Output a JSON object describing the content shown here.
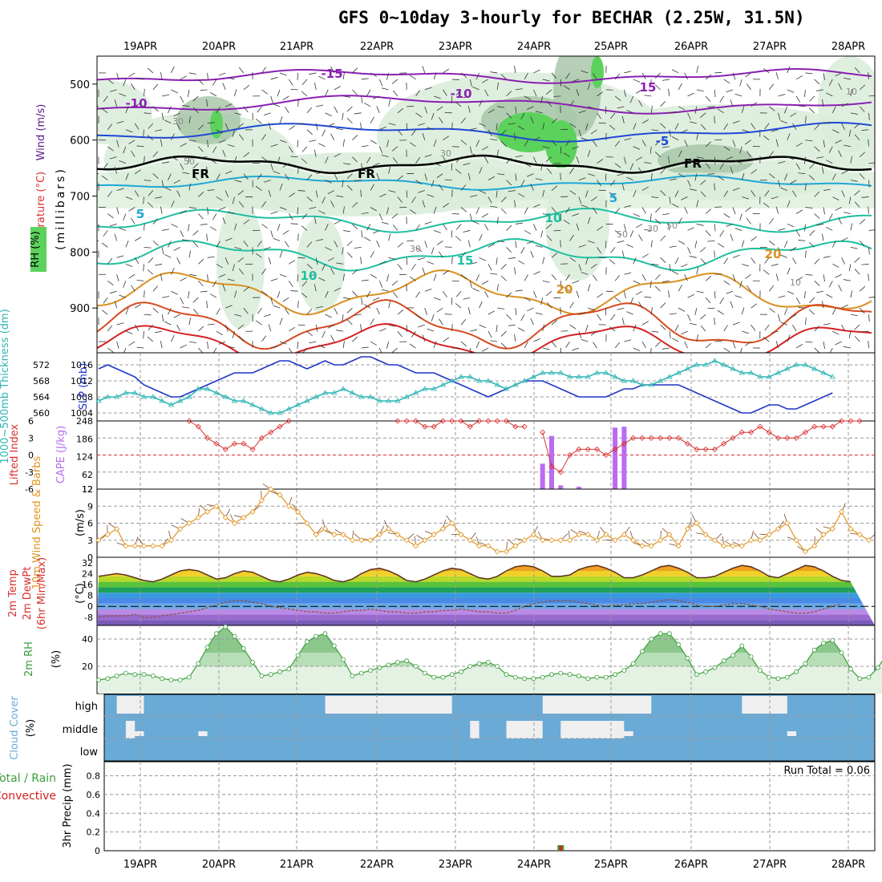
{
  "title": "GFS 0~10day 3-hourly for BECHAR (2.25W, 31.5N)",
  "colors": {
    "rh_light": "#d9ecd9",
    "rh_mid": "#a9c7a9",
    "rh_dark": "#7fa07f",
    "rh_green": "#5cd25c",
    "temp_neg": "#8a1fb3",
    "temp_neg_blue": "#1f49d6",
    "temp_pos_cyan": "#1fa7d6",
    "temp_pos_teal": "#1fbfa0",
    "temp_warm": "#d98f1f",
    "temp_hot": "#d64a1f",
    "temp_red": "#d62020",
    "slp": "#1f35c8",
    "thickness": "#2fb5b5",
    "lifted": "#d93030",
    "cape": "#b86cf0",
    "wind10": "#e0941f",
    "rh2m": "#3a9e3a",
    "cloud": "#6aaad6",
    "cloud_gap": "#efefef",
    "rain": "#3a9e3a",
    "conv": "#d62020"
  },
  "dates": [
    "19APR",
    "20APR",
    "21APR",
    "22APR",
    "23APR",
    "24APR",
    "25APR",
    "26APR",
    "27APR",
    "28APR"
  ],
  "chart_data": [
    {
      "type": "heatmap",
      "panel": "upper-air",
      "labels": {
        "wind": "Wind (m/s)",
        "temp": "Temperature (°C)",
        "rh": "RH (%)",
        "unit": "(millibars)"
      },
      "y_ticks": [
        "500",
        "600",
        "700",
        "800",
        "900"
      ],
      "ylim": [
        980,
        450
      ],
      "temperature_contour_labels": [
        "-15",
        "-10",
        "-10",
        "15",
        "-5",
        "5",
        "5",
        "10",
        "15",
        "20",
        "10",
        "20",
        "FR",
        "FR",
        "FR"
      ],
      "rh_contour_labels": [
        "30",
        "30",
        "50",
        "30",
        "50",
        "50",
        "30",
        "10",
        "10"
      ]
    },
    {
      "type": "line",
      "panel": "thickness-slp",
      "labels": {
        "thickness": "1000~500mb Thickness (dm)",
        "slp": "SLP (mb)"
      },
      "left_ticks": [
        "560",
        "564",
        "568",
        "572"
      ],
      "right_ticks": [
        "1004",
        "1008",
        "1012",
        "1016"
      ],
      "left_lim": [
        558,
        575
      ],
      "right_lim": [
        1002,
        1019
      ],
      "series": [
        {
          "name": "SLP",
          "axis": "right",
          "values": [
            1015,
            1016,
            1015,
            1014,
            1013,
            1011,
            1010,
            1009,
            1008,
            1008,
            1009,
            1010,
            1011,
            1012,
            1013,
            1014,
            1014,
            1014,
            1015,
            1016,
            1017,
            1017,
            1016,
            1015,
            1016,
            1017,
            1016,
            1016,
            1017,
            1018,
            1018,
            1017,
            1016,
            1016,
            1015,
            1014,
            1014,
            1014,
            1013,
            1012,
            1011,
            1010,
            1009,
            1008,
            1009,
            1010,
            1011,
            1012,
            1012,
            1012,
            1011,
            1010,
            1009,
            1008,
            1008,
            1008,
            1008,
            1009,
            1010,
            1010,
            1011,
            1011,
            1011,
            1011,
            1011,
            1010,
            1009,
            1008,
            1007,
            1006,
            1005,
            1004,
            1004,
            1005,
            1006,
            1006,
            1005,
            1005,
            1006,
            1007,
            1008,
            1009
          ]
        },
        {
          "name": "Thickness",
          "axis": "left",
          "values": [
            563,
            564,
            564,
            565,
            565,
            564,
            564,
            563,
            562,
            563,
            564,
            566,
            566,
            565,
            564,
            563,
            563,
            562,
            561,
            560,
            560,
            561,
            562,
            563,
            564,
            565,
            565,
            566,
            565,
            564,
            564,
            563,
            563,
            563,
            564,
            565,
            566,
            566,
            567,
            568,
            569,
            569,
            568,
            568,
            567,
            566,
            567,
            568,
            569,
            570,
            570,
            570,
            569,
            569,
            569,
            570,
            570,
            569,
            568,
            568,
            567,
            567,
            568,
            569,
            570,
            571,
            572,
            572,
            573,
            572,
            571,
            570,
            570,
            569,
            569,
            570,
            571,
            572,
            572,
            571,
            570,
            569
          ]
        }
      ]
    },
    {
      "type": "bar",
      "panel": "lifted-cape",
      "labels": {
        "lifted": "Lifted Index",
        "cape": "CAPE (J/kg)"
      },
      "left_ticks": [
        "6",
        "3",
        "0",
        "-3",
        "-6"
      ],
      "right_ticks": [
        "12",
        "62",
        "124",
        "186",
        "248"
      ],
      "left_lim": [
        6,
        -6
      ],
      "right_lim": [
        12,
        248
      ],
      "cape_bars": [
        {
          "x": 49,
          "v": 100
        },
        {
          "x": 50,
          "v": 196
        },
        {
          "x": 51,
          "v": 25
        },
        {
          "x": 53,
          "v": 20
        },
        {
          "x": 57,
          "v": 225
        },
        {
          "x": 58,
          "v": 228
        }
      ],
      "lifted_index": [
        null,
        null,
        null,
        null,
        null,
        null,
        null,
        null,
        null,
        null,
        6,
        5,
        3,
        2,
        1,
        2,
        2,
        1,
        3,
        4,
        5,
        6,
        null,
        null,
        null,
        null,
        null,
        null,
        null,
        null,
        null,
        null,
        null,
        6,
        6,
        6,
        5,
        5,
        6,
        6,
        6,
        5,
        6,
        6,
        6,
        6,
        5,
        5,
        null,
        4,
        -2,
        -3,
        0,
        1,
        1,
        1,
        0,
        1,
        2,
        3,
        3,
        3,
        3,
        3,
        3,
        2,
        1,
        1,
        1,
        2,
        3,
        4,
        4,
        5,
        4,
        3,
        3,
        3,
        4,
        5,
        5,
        5,
        6,
        6,
        6
      ]
    },
    {
      "type": "line",
      "panel": "wind10m",
      "labels": {
        "main": "10m Wind Speed & Barbs",
        "unit": "(m/s)"
      },
      "y_ticks": [
        "0",
        "3",
        "6",
        "9",
        "12"
      ],
      "ylim": [
        0,
        12
      ],
      "values": [
        3,
        4,
        5,
        2,
        2,
        2,
        2,
        2,
        3,
        5,
        6,
        7,
        8,
        9,
        7,
        6,
        7,
        8,
        10,
        12,
        11,
        9,
        8,
        6,
        4,
        5,
        4,
        4,
        3,
        3,
        3,
        4,
        5,
        4,
        3,
        2,
        3,
        4,
        5,
        6,
        4,
        3,
        2,
        2,
        1,
        1,
        2,
        3,
        4,
        3,
        3,
        3,
        3,
        4,
        4,
        3,
        4,
        3,
        4,
        3,
        2,
        2,
        3,
        4,
        2,
        5,
        6,
        4,
        3,
        2,
        2,
        2,
        3,
        3,
        4,
        5,
        6,
        3,
        1,
        2,
        4,
        5,
        8,
        5,
        4,
        3
      ]
    },
    {
      "type": "area",
      "panel": "temp2m",
      "labels": {
        "main": "2m Temp",
        "dewpt": "2m DewPt",
        "minmax": "(6hr Min/Max)",
        "unit": "(°C)"
      },
      "y_ticks": [
        "-8",
        "0",
        "8",
        "16",
        "24",
        "32"
      ],
      "ylim": [
        -14,
        36
      ],
      "temperature": [
        22,
        23,
        24,
        23,
        21,
        19,
        18,
        20,
        23,
        26,
        27,
        26,
        23,
        20,
        21,
        24,
        26,
        25,
        22,
        19,
        18,
        20,
        23,
        25,
        24,
        22,
        19,
        18,
        20,
        24,
        27,
        28,
        26,
        23,
        19,
        18,
        20,
        23,
        26,
        28,
        27,
        24,
        21,
        20,
        22,
        26,
        29,
        30,
        29,
        26,
        22,
        22,
        23,
        27,
        29,
        30,
        28,
        25,
        21,
        21,
        23,
        26,
        29,
        30,
        28,
        25,
        21,
        21,
        22,
        25,
        28,
        30,
        29,
        26,
        22,
        21,
        24,
        27,
        30,
        29,
        26,
        22,
        19,
        18
      ],
      "dewpoint": [
        -8,
        -7,
        -7,
        -7,
        -6,
        -8,
        -8,
        -7,
        -6,
        -5,
        -4,
        -3,
        -1,
        1,
        3,
        4,
        4,
        3,
        2,
        0,
        -1,
        -2,
        -3,
        -4,
        -4,
        -5,
        -5,
        -4,
        -3,
        -3,
        -2,
        -3,
        -4,
        -4,
        -5,
        -5,
        -4,
        -4,
        -3,
        -3,
        -2,
        -3,
        -4,
        -4,
        -5,
        -5,
        -3,
        0,
        2,
        3,
        4,
        4,
        4,
        3,
        2,
        1,
        0,
        1,
        1,
        2,
        2,
        3,
        4,
        5,
        4,
        3,
        1,
        0,
        0,
        1,
        2,
        2,
        1,
        0,
        -2,
        -3,
        -4,
        -5,
        -5,
        -4,
        -2,
        0,
        2
      ]
    },
    {
      "type": "area",
      "panel": "rh2m",
      "labels": {
        "main": "2m RH",
        "unit": "(%)"
      },
      "y_ticks": [
        "20",
        "40"
      ],
      "ylim": [
        0,
        50
      ],
      "values": [
        10,
        11,
        13,
        15,
        14,
        14,
        13,
        11,
        10,
        10,
        12,
        22,
        34,
        44,
        49,
        42,
        33,
        23,
        13,
        14,
        16,
        18,
        28,
        38,
        42,
        44,
        35,
        25,
        13,
        15,
        17,
        19,
        21,
        23,
        24,
        20,
        15,
        12,
        12,
        14,
        16,
        20,
        22,
        23,
        20,
        14,
        12,
        11,
        11,
        12,
        14,
        15,
        14,
        13,
        11,
        12,
        12,
        14,
        17,
        22,
        31,
        40,
        44,
        44,
        36,
        26,
        14,
        16,
        19,
        24,
        28,
        35,
        27,
        17,
        12,
        11,
        12,
        16,
        22,
        32,
        37,
        39,
        30,
        18,
        11,
        12,
        19,
        29,
        38
      ]
    },
    {
      "type": "table",
      "panel": "cloud",
      "labels": {
        "main": "Cloud Cover",
        "unit": "(%)"
      },
      "levels": [
        "high",
        "middle",
        "low"
      ],
      "gaps": [
        {
          "level": "high",
          "x0": 2,
          "x1": 5
        },
        {
          "level": "high",
          "x0": 25,
          "x1": 39
        },
        {
          "level": "high",
          "x0": 49,
          "x1": 61
        },
        {
          "level": "high",
          "x0": 71,
          "x1": 76
        },
        {
          "level": "middle",
          "x0": 3,
          "x1": 4
        },
        {
          "level": "middle",
          "x0": 41,
          "x1": 42
        },
        {
          "level": "middle",
          "x0": 45,
          "x1": 49
        },
        {
          "level": "middle",
          "x0": 51,
          "x1": 58
        },
        {
          "level": "low",
          "x0": 3,
          "x1": 5
        },
        {
          "level": "low",
          "x0": 11,
          "x1": 12
        },
        {
          "level": "low",
          "x0": 51,
          "x1": 59
        },
        {
          "level": "low",
          "x0": 76,
          "x1": 77
        }
      ]
    },
    {
      "type": "bar",
      "panel": "precip",
      "labels": {
        "main": "3hr Precip (mm)",
        "total_rain": "Total / Rain",
        "conv": "Convective",
        "run_total": "Run Total = 0.06"
      },
      "y_ticks": [
        "0",
        "0.2",
        "0.4",
        "0.6",
        "0.8"
      ],
      "ylim": [
        0,
        0.95
      ],
      "bars": [
        {
          "x": 51,
          "v": 0.06
        }
      ]
    }
  ]
}
